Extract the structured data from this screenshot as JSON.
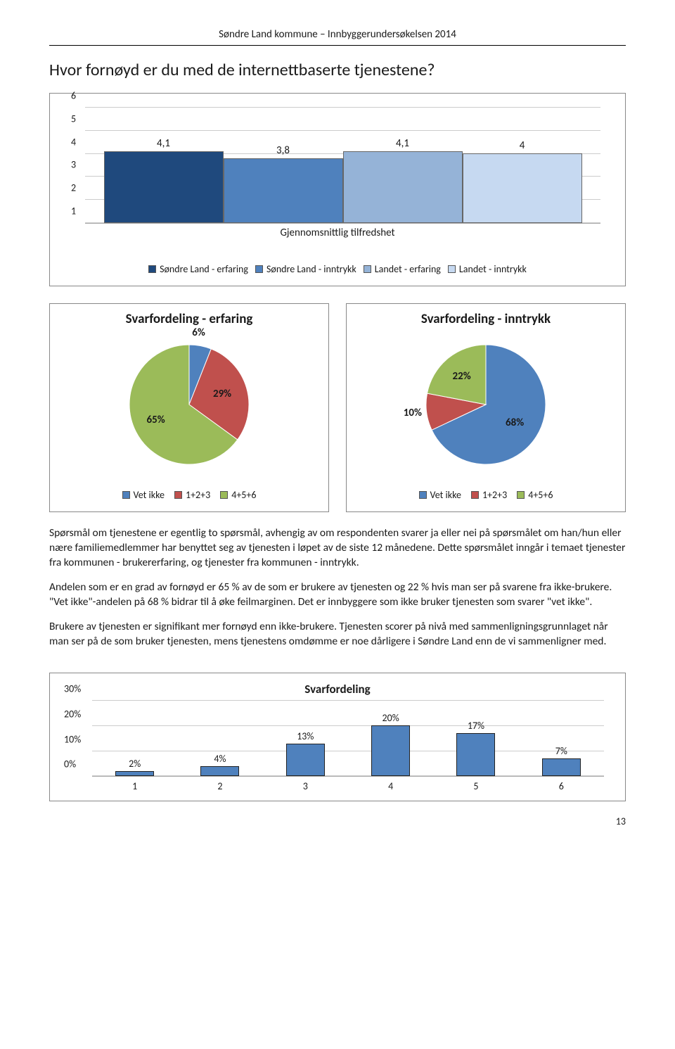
{
  "header": "Søndre Land kommune – Innbyggerundersøkelsen 2014",
  "question": "Hvor fornøyd er du med de internettbaserte tjenestene?",
  "top_chart": {
    "type": "bar",
    "y_min": 1,
    "y_max": 6,
    "y_ticks": [
      1,
      2,
      3,
      4,
      5,
      6
    ],
    "x_title": "Gjennomsnittlig tilfredshet",
    "series": [
      {
        "label": "Søndre Land - erfaring",
        "value": 4.1,
        "display": "4,1",
        "color": "#1f497d"
      },
      {
        "label": "Søndre Land - inntrykk",
        "value": 3.8,
        "display": "3,8",
        "color": "#4f81bd"
      },
      {
        "label": "Landet - erfaring",
        "value": 4.1,
        "display": "4,1",
        "color": "#95b3d7"
      },
      {
        "label": "Landet - inntrykk",
        "value": 4.0,
        "display": "4",
        "color": "#c6d9f1"
      }
    ]
  },
  "pie_left": {
    "title": "Svarfordeling - erfaring",
    "slices": [
      {
        "label": "Vet ikke",
        "value": 6,
        "display": "6%",
        "color": "#4f81bd"
      },
      {
        "label": "1+2+3",
        "value": 29,
        "display": "29%",
        "color": "#c0504d"
      },
      {
        "label": "4+5+6",
        "value": 65,
        "display": "65%",
        "color": "#9bbb59"
      }
    ]
  },
  "pie_right": {
    "title": "Svarfordeling - inntrykk",
    "slices": [
      {
        "label": "Vet ikke",
        "value": 68,
        "display": "68%",
        "color": "#4f81bd"
      },
      {
        "label": "1+2+3",
        "value": 10,
        "display": "10%",
        "color": "#c0504d"
      },
      {
        "label": "4+5+6",
        "value": 22,
        "display": "22%",
        "color": "#9bbb59"
      }
    ]
  },
  "pie_legend": [
    {
      "label": "Vet ikke",
      "color": "#4f81bd"
    },
    {
      "label": "1+2+3",
      "color": "#c0504d"
    },
    {
      "label": "4+5+6",
      "color": "#9bbb59"
    }
  ],
  "paragraphs": {
    "p1": "Spørsmål om tjenestene er egentlig to spørsmål, avhengig av om respondenten svarer ja eller nei på spørsmålet om han/hun eller nære familiemedlemmer har benyttet seg av tjenesten i løpet av de siste 12 månedene. Dette spørsmålet inngår i temaet tjenester fra kommunen - brukererfaring, og tjenester fra kommunen - inntrykk.",
    "p2": "Andelen som er en grad av fornøyd er 65 % av de som er brukere av tjenesten og 22 % hvis man ser på svarene fra ikke-brukere.",
    "p3": "\"Vet ikke\"-andelen på 68 % bidrar til å øke feilmarginen. Det er innbyggere som ikke bruker tjenesten som svarer \"vet ikke\".",
    "p4": "Brukere av tjenesten er signifikant mer fornøyd enn ikke-brukere. Tjenesten scorer på nivå med sammenligningsgrunnlaget når man ser på de som bruker tjenesten, mens tjenestens omdømme er noe dårligere i Søndre Land enn de vi sammenligner med."
  },
  "bottom_chart": {
    "title": "Svarfordeling",
    "type": "bar",
    "y_max": 30,
    "y_ticks": [
      "0%",
      "10%",
      "20%",
      "30%"
    ],
    "bar_color": "#4f81bd",
    "categories": [
      "1",
      "2",
      "3",
      "4",
      "5",
      "6"
    ],
    "values": [
      2,
      4,
      13,
      20,
      17,
      7
    ],
    "display": [
      "2%",
      "4%",
      "13%",
      "20%",
      "17%",
      "7%"
    ]
  },
  "page_number": "13"
}
